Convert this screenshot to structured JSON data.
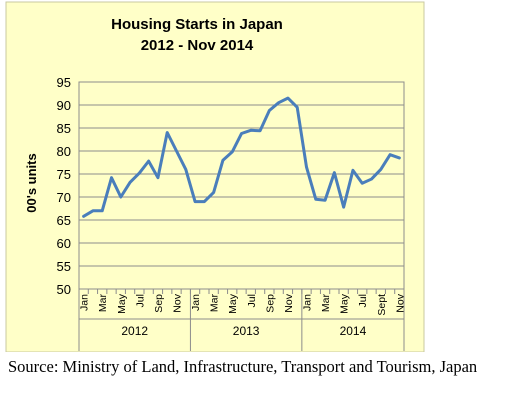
{
  "chart_data": {
    "type": "line",
    "title_line1": "Housing Starts in Japan",
    "title_line2": "2012 - Nov 2014",
    "ylabel": "00's units",
    "xlabel": "",
    "ylim": [
      50,
      95
    ],
    "yticks": [
      50,
      55,
      60,
      65,
      70,
      75,
      80,
      85,
      90,
      95
    ],
    "grid": true,
    "legend": "none",
    "line_color": "#4a7ebb",
    "background_color": "#ffffc8",
    "month_labels": [
      "Jan",
      "",
      "Mar",
      "",
      "May",
      "",
      "Jul",
      "",
      "Sep",
      "",
      "Nov",
      "",
      "Jan",
      "",
      "Mar",
      "",
      "May",
      "",
      "Jul",
      "",
      "Sep",
      "",
      "Nov",
      "",
      "Jan",
      "",
      "Mar",
      "",
      "May",
      "",
      "Jul",
      "",
      "Sept",
      "",
      "Nov"
    ],
    "years": [
      {
        "label": "2012",
        "start": 0,
        "end": 11
      },
      {
        "label": "2013",
        "start": 12,
        "end": 23
      },
      {
        "label": "2014",
        "start": 24,
        "end": 34
      }
    ],
    "values": [
      65.8,
      67.0,
      67.0,
      74.2,
      70.0,
      73.2,
      75.2,
      77.8,
      74.2,
      84.0,
      80.0,
      76.0,
      69.0,
      69.0,
      71.0,
      78.0,
      79.8,
      83.8,
      84.5,
      84.4,
      88.8,
      90.5,
      91.5,
      89.5,
      76.5,
      69.5,
      69.3,
      75.3,
      67.8,
      75.8,
      73.0,
      73.9,
      76.0,
      79.2,
      78.5
    ]
  },
  "source": {
    "text": "Source: Ministry of Land, Infrastructure, Transport and Tourism, Japan"
  }
}
